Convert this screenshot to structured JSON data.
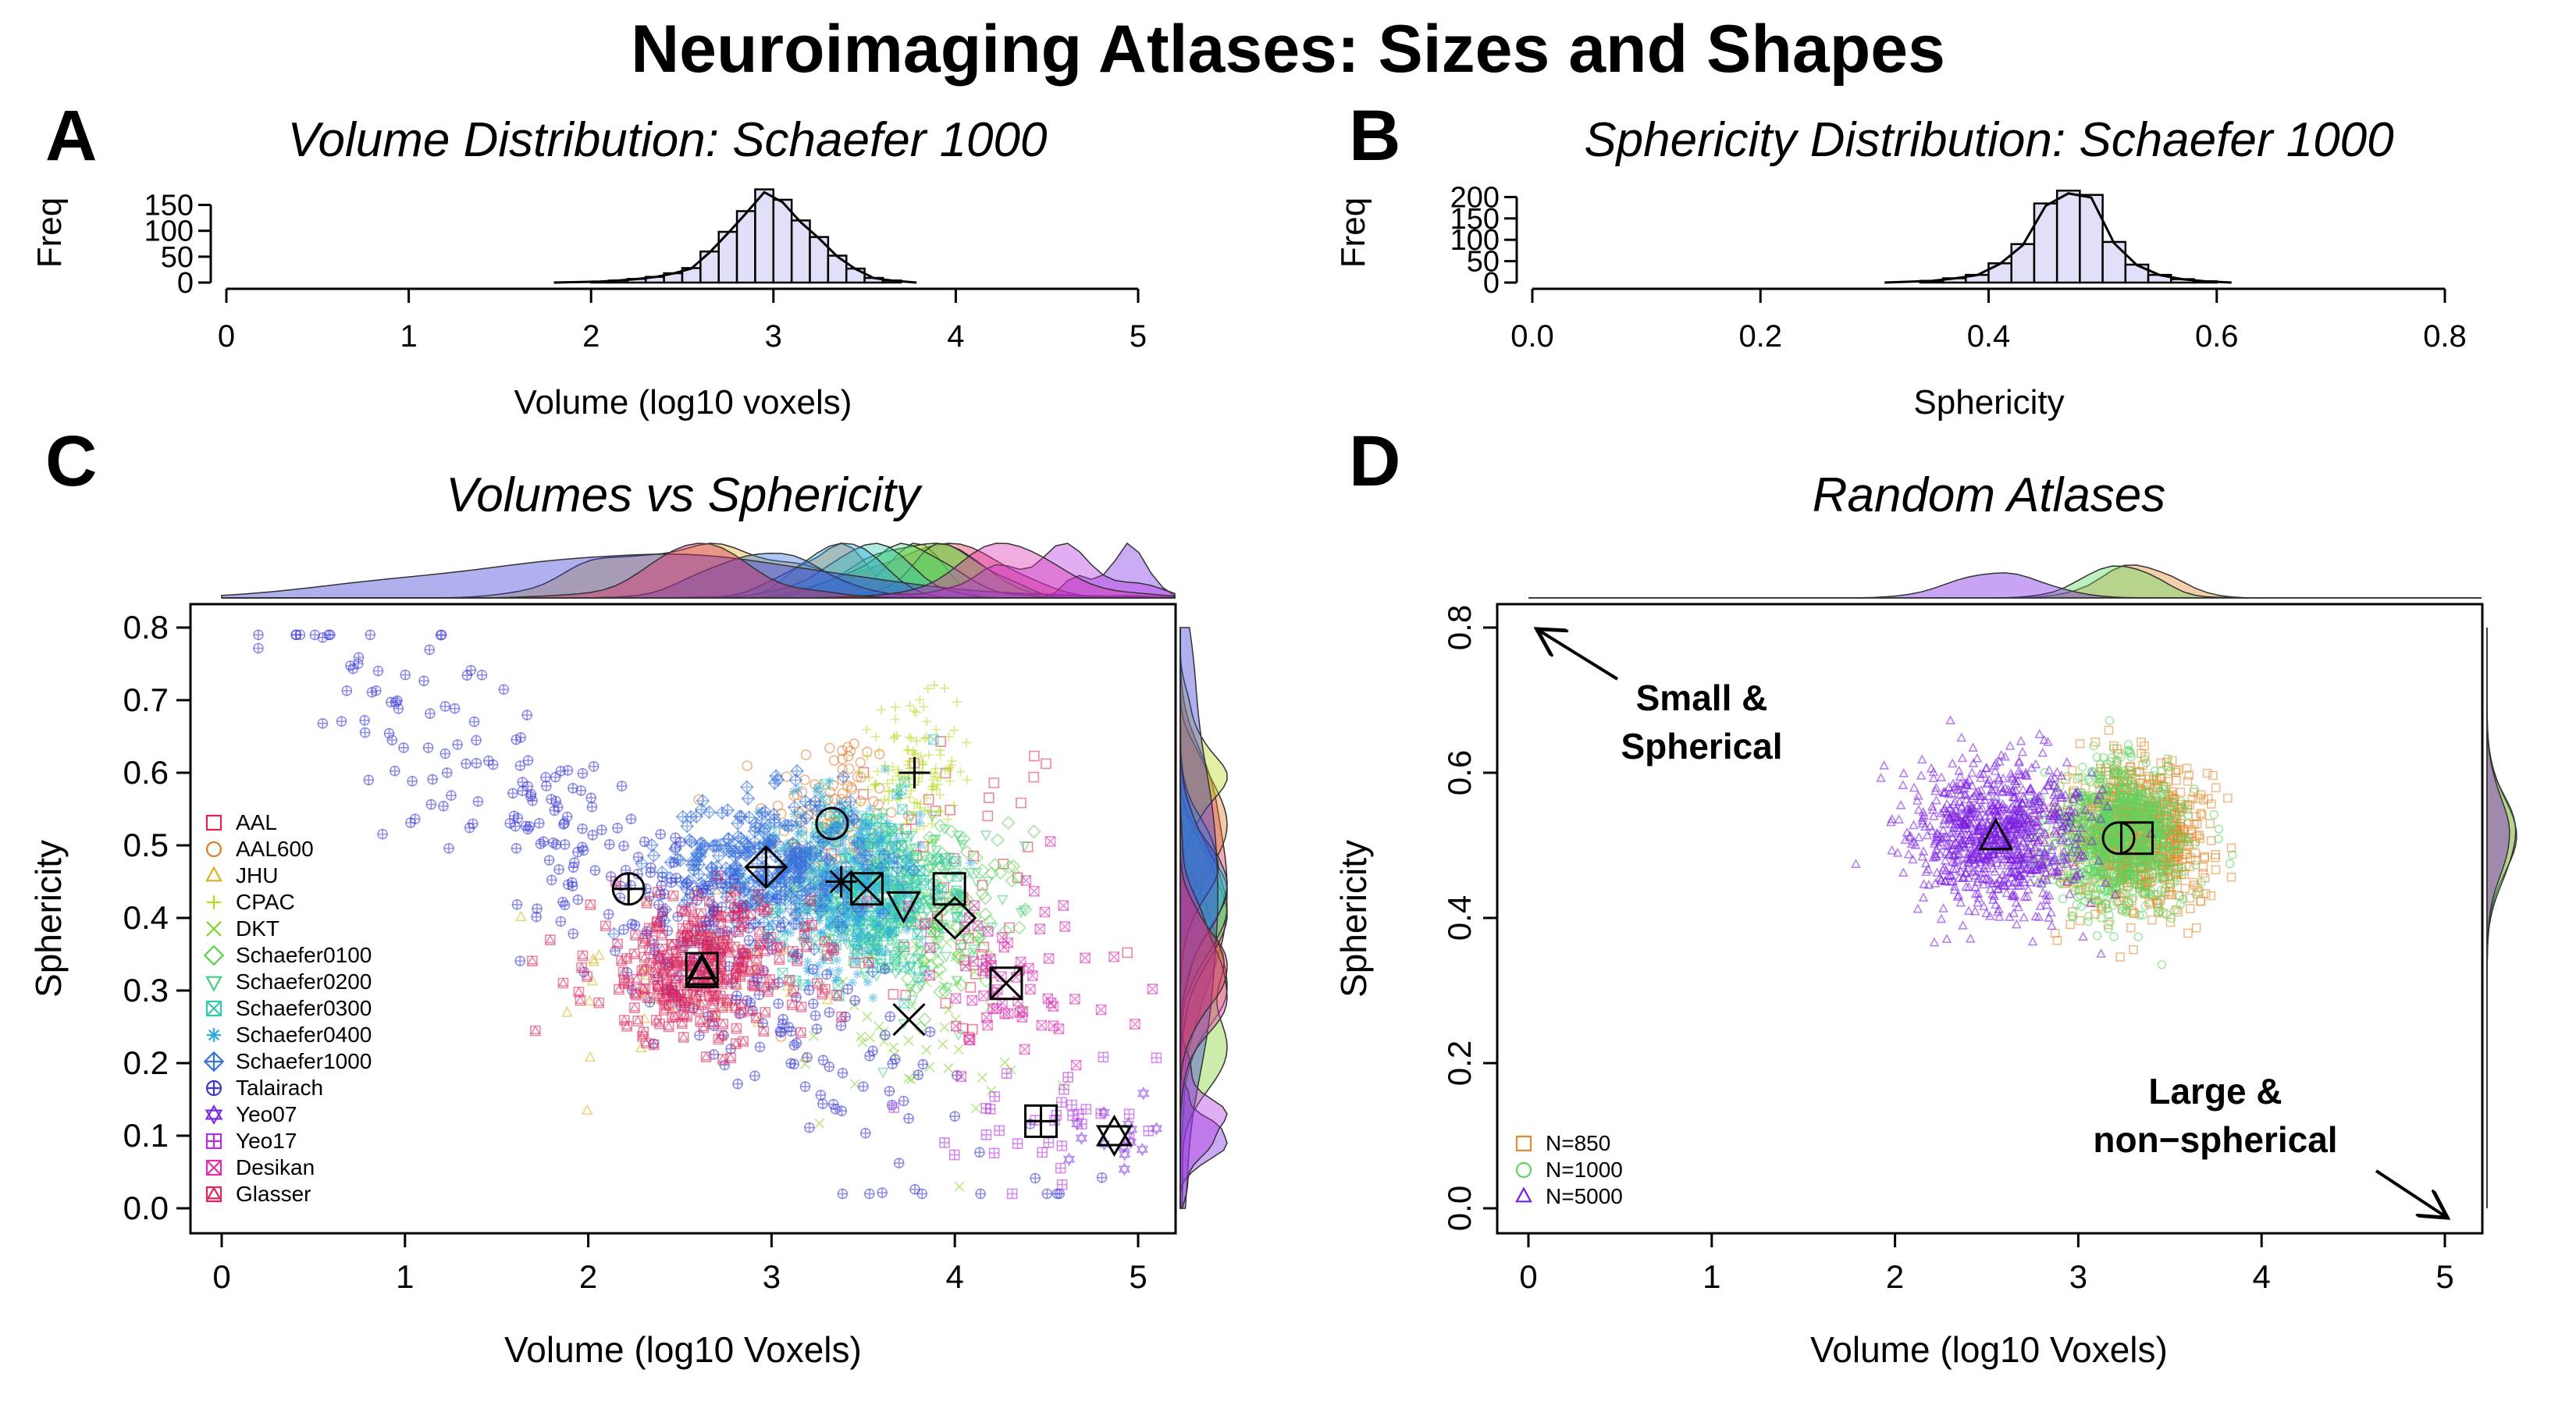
{
  "figure": {
    "title": "Neuroimaging Atlases: Sizes and Shapes"
  },
  "panels": {
    "A": {
      "letter": "A",
      "title": "Volume Distribution: Schaefer 1000",
      "xlabel": "Volume (log10 voxels)",
      "ylabel": "Freq"
    },
    "B": {
      "letter": "B",
      "title": "Sphericity Distribution: Schaefer 1000",
      "xlabel": "Sphericity",
      "ylabel": "Freq"
    },
    "C": {
      "letter": "C",
      "title": "Volumes vs Sphericity",
      "xlabel": "Volume (log10 Voxels)",
      "ylabel": "Sphericity"
    },
    "D": {
      "letter": "D",
      "title": "Random Atlases",
      "xlabel": "Volume (log10 Voxels)",
      "ylabel": "Sphericity",
      "annot_small": [
        "Small &",
        "Spherical"
      ],
      "annot_large": [
        "Large &",
        "non−spherical"
      ]
    }
  },
  "chart_data": [
    {
      "panel": "A",
      "type": "bar",
      "subtype": "histogram",
      "title": "Volume Distribution: Schaefer 1000",
      "xlabel": "Volume (log10 voxels)",
      "ylabel": "Freq",
      "xlim": [
        0,
        5
      ],
      "ylim": [
        0,
        190
      ],
      "xticks": [
        0,
        1,
        2,
        3,
        4,
        5
      ],
      "yticks": [
        0,
        50,
        100,
        150
      ],
      "bin_width": 0.1,
      "bins": [
        {
          "x0": 2.0,
          "x1": 2.1,
          "freq": 2
        },
        {
          "x0": 2.1,
          "x1": 2.2,
          "freq": 4
        },
        {
          "x0": 2.2,
          "x1": 2.3,
          "freq": 7
        },
        {
          "x0": 2.3,
          "x1": 2.4,
          "freq": 11
        },
        {
          "x0": 2.4,
          "x1": 2.5,
          "freq": 18
        },
        {
          "x0": 2.5,
          "x1": 2.6,
          "freq": 28
        },
        {
          "x0": 2.6,
          "x1": 2.7,
          "freq": 60
        },
        {
          "x0": 2.7,
          "x1": 2.8,
          "freq": 98
        },
        {
          "x0": 2.8,
          "x1": 2.9,
          "freq": 138
        },
        {
          "x0": 2.9,
          "x1": 3.0,
          "freq": 180
        },
        {
          "x0": 3.0,
          "x1": 3.1,
          "freq": 160
        },
        {
          "x0": 3.1,
          "x1": 3.2,
          "freq": 120
        },
        {
          "x0": 3.2,
          "x1": 3.3,
          "freq": 88
        },
        {
          "x0": 3.3,
          "x1": 3.4,
          "freq": 52
        },
        {
          "x0": 3.4,
          "x1": 3.5,
          "freq": 27
        },
        {
          "x0": 3.5,
          "x1": 3.6,
          "freq": 9
        },
        {
          "x0": 3.6,
          "x1": 3.7,
          "freq": 4
        }
      ],
      "bar_color": "#e0e0f8"
    },
    {
      "panel": "B",
      "type": "bar",
      "subtype": "histogram",
      "title": "Sphericity Distribution: Schaefer 1000",
      "xlabel": "Sphericity",
      "ylabel": "Freq",
      "xlim": [
        0,
        0.8
      ],
      "ylim": [
        0,
        230
      ],
      "xticks": [
        0.0,
        0.2,
        0.4,
        0.6,
        0.8
      ],
      "xtick_labels": [
        "0.0",
        "0.2",
        "0.4",
        "0.6",
        "0.8"
      ],
      "yticks": [
        0,
        50,
        100,
        150,
        200
      ],
      "bin_width": 0.02,
      "bins": [
        {
          "x0": 0.34,
          "x1": 0.36,
          "freq": 4
        },
        {
          "x0": 0.36,
          "x1": 0.38,
          "freq": 10
        },
        {
          "x0": 0.38,
          "x1": 0.4,
          "freq": 18
        },
        {
          "x0": 0.4,
          "x1": 0.42,
          "freq": 45
        },
        {
          "x0": 0.42,
          "x1": 0.44,
          "freq": 90
        },
        {
          "x0": 0.44,
          "x1": 0.46,
          "freq": 185
        },
        {
          "x0": 0.46,
          "x1": 0.48,
          "freq": 215
        },
        {
          "x0": 0.48,
          "x1": 0.5,
          "freq": 205
        },
        {
          "x0": 0.5,
          "x1": 0.52,
          "freq": 95
        },
        {
          "x0": 0.52,
          "x1": 0.54,
          "freq": 42
        },
        {
          "x0": 0.54,
          "x1": 0.56,
          "freq": 18
        },
        {
          "x0": 0.56,
          "x1": 0.58,
          "freq": 8
        },
        {
          "x0": 0.58,
          "x1": 0.6,
          "freq": 3
        }
      ],
      "bar_color": "#e0e0f8"
    },
    {
      "panel": "C",
      "type": "scatter",
      "title": "Volumes vs Sphericity",
      "xlabel": "Volume (log10 Voxels)",
      "ylabel": "Sphericity",
      "xlim": [
        0,
        5
      ],
      "ylim": [
        0,
        0.8
      ],
      "xticks": [
        0,
        1,
        2,
        3,
        4,
        5
      ],
      "yticks": [
        0.0,
        0.1,
        0.2,
        0.3,
        0.4,
        0.5,
        0.6,
        0.7,
        0.8
      ],
      "ytick_labels": [
        "0.0",
        "0.1",
        "0.2",
        "0.3",
        "0.4",
        "0.5",
        "0.6",
        "0.7",
        "0.8"
      ],
      "legend_position": "left",
      "marginal_densities": [
        "top",
        "right"
      ],
      "series": [
        {
          "name": "AAL",
          "marker": "square",
          "color": "#e0284e",
          "centroid": [
            3.97,
            0.44
          ],
          "spread": [
            0.35,
            0.12
          ],
          "n": 60
        },
        {
          "name": "AAL600",
          "marker": "circle",
          "color": "#e07b2b",
          "centroid": [
            3.33,
            0.53
          ],
          "spread": [
            0.18,
            0.07
          ],
          "n": 120
        },
        {
          "name": "JHU",
          "marker": "triangle",
          "color": "#d9b21c",
          "centroid": [
            2.62,
            0.32
          ],
          "spread": [
            0.4,
            0.08
          ],
          "n": 40
        },
        {
          "name": "CPAC",
          "marker": "plus",
          "color": "#b7d91f",
          "centroid": [
            3.78,
            0.6
          ],
          "spread": [
            0.12,
            0.05
          ],
          "n": 130
        },
        {
          "name": "DKT",
          "marker": "x",
          "color": "#7fd32a",
          "centroid": [
            3.75,
            0.26
          ],
          "spread": [
            0.3,
            0.08
          ],
          "n": 60
        },
        {
          "name": "Schaefer0100",
          "marker": "diamond",
          "color": "#5bd24a",
          "centroid": [
            4.0,
            0.4
          ],
          "spread": [
            0.2,
            0.06
          ],
          "n": 100
        },
        {
          "name": "Schaefer0200",
          "marker": "triangle-down",
          "color": "#3fcf7e",
          "centroid": [
            3.72,
            0.42
          ],
          "spread": [
            0.22,
            0.06
          ],
          "n": 200
        },
        {
          "name": "Schaefer0300",
          "marker": "square-x",
          "color": "#35c9b0",
          "centroid": [
            3.52,
            0.44
          ],
          "spread": [
            0.22,
            0.06
          ],
          "n": 300
        },
        {
          "name": "Schaefer0400",
          "marker": "asterisk",
          "color": "#32a9e0",
          "centroid": [
            3.38,
            0.45
          ],
          "spread": [
            0.22,
            0.06
          ],
          "n": 400
        },
        {
          "name": "Schaefer1000",
          "marker": "diamond-plus",
          "color": "#3a72db",
          "centroid": [
            2.97,
            0.47
          ],
          "spread": [
            0.28,
            0.05
          ],
          "n": 1000
        },
        {
          "name": "Talairach",
          "marker": "circle-plus",
          "color": "#3b3ad6",
          "centroid": [
            2.22,
            0.44
          ],
          "spread": [
            0.9,
            0.15
          ],
          "n": 1100
        },
        {
          "name": "Yeo07",
          "marker": "star-of-david",
          "color": "#7a2ee0",
          "centroid": [
            4.87,
            0.1
          ],
          "spread": [
            0.12,
            0.02
          ],
          "n": 14
        },
        {
          "name": "Yeo17",
          "marker": "square-plus",
          "color": "#b433e0",
          "centroid": [
            4.47,
            0.12
          ],
          "spread": [
            0.25,
            0.04
          ],
          "n": 34
        },
        {
          "name": "Desikan",
          "marker": "square-cross",
          "color": "#dc2fb2",
          "centroid": [
            4.28,
            0.31
          ],
          "spread": [
            0.35,
            0.07
          ],
          "n": 70
        },
        {
          "name": "Glasser",
          "marker": "square-triangle",
          "color": "#d9275c",
          "centroid": [
            2.62,
            0.33
          ],
          "spread": [
            0.3,
            0.05
          ],
          "n": 360
        }
      ]
    },
    {
      "panel": "D",
      "type": "scatter",
      "title": "Random Atlases",
      "xlabel": "Volume (log10 Voxels)",
      "ylabel": "Sphericity",
      "xlim": [
        0,
        5
      ],
      "ylim": [
        0,
        0.8
      ],
      "xticks": [
        0,
        1,
        2,
        3,
        4,
        5
      ],
      "yticks": [
        0.0,
        0.2,
        0.4,
        0.6,
        0.8
      ],
      "ytick_labels": [
        "0.0",
        "0.2",
        "0.4",
        "0.6",
        "0.8"
      ],
      "legend_position": "bottom-left",
      "marginal_densities": [
        "top",
        "right"
      ],
      "series": [
        {
          "name": "N=850",
          "marker": "square",
          "color": "#e08a2b",
          "centroid": [
            3.32,
            0.51
          ],
          "spread": [
            0.18,
            0.05
          ],
          "n": 850
        },
        {
          "name": "N=1000",
          "marker": "circle",
          "color": "#5cd660",
          "centroid": [
            3.22,
            0.51
          ],
          "spread": [
            0.18,
            0.05
          ],
          "n": 1000
        },
        {
          "name": "N=5000",
          "marker": "triangle",
          "color": "#7a1ee0",
          "centroid": [
            2.55,
            0.51
          ],
          "spread": [
            0.22,
            0.05
          ],
          "n": 5000
        }
      ]
    }
  ]
}
